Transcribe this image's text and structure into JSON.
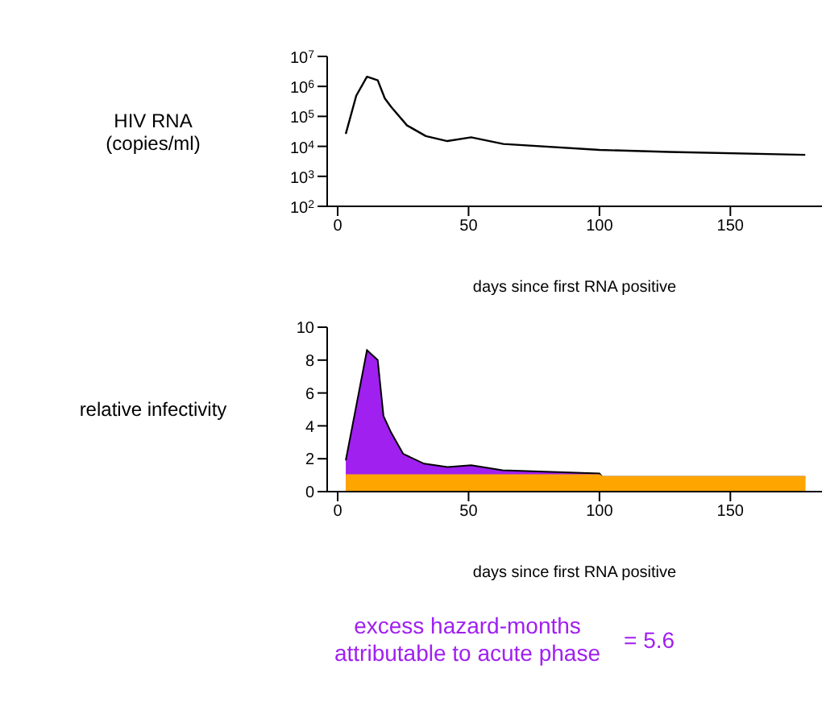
{
  "chart_data": [
    {
      "type": "line",
      "ylabel": "HIV RNA (copies/ml)",
      "xlabel": "days since first RNA positive",
      "log": "y",
      "xlim": [
        -4,
        185
      ],
      "xticks": [
        0,
        50,
        100,
        150
      ],
      "ylim": [
        100,
        10000000
      ],
      "yticks": [
        {
          "value": 100,
          "label": "10$^{2}$"
        },
        {
          "value": 1000,
          "label": "10$^{3}$"
        },
        {
          "value": 10000,
          "label": "10$^{4}$"
        },
        {
          "value": 100000,
          "label": "10$^{5}$"
        },
        {
          "value": 1000000,
          "label": "10$^{6}$"
        },
        {
          "value": 10000000,
          "label": "10$^{7}$"
        }
      ],
      "series": [
        {
          "color": "#000000",
          "x": [
            3.1,
            7.1,
            11.2,
            15.3,
            18,
            20.4,
            26.5,
            33.7,
            41.9,
            51,
            63.3,
            100,
            126.5,
            178.6
          ],
          "values": [
            26000,
            490000,
            2100000,
            1600000,
            400000,
            210000,
            50000,
            22000,
            15000,
            20000,
            12000,
            7600,
            6500,
            5200
          ]
        }
      ]
    },
    {
      "type": "area",
      "ylabel": "relative infectivity",
      "xlabel": "days since first RNA positive",
      "xlim": [
        -4,
        185
      ],
      "xticks": [
        0,
        50,
        100,
        150
      ],
      "ylim": [
        0,
        10
      ],
      "yticks": [
        0,
        2,
        4,
        6,
        8,
        10
      ],
      "series": [
        {
          "color": "#a020f0",
          "x": [
            3.1,
            11.2,
            15.3,
            17.5,
            20.4,
            25,
            33,
            42,
            51,
            63,
            100,
            101,
            178.6
          ],
          "values": [
            1.9,
            8.6,
            8.0,
            4.6,
            3.6,
            2.3,
            1.7,
            1.5,
            1.6,
            1.3,
            1.1,
            0.9,
            0.9
          ]
        },
        {
          "color": "#ffa500",
          "x": [
            3.1,
            100,
            101,
            178.6
          ],
          "values": [
            1,
            1,
            0.9,
            0.9
          ]
        }
      ],
      "annotations": [
        "excess hazard-months attributable to acute phase",
        "= 5.6"
      ]
    }
  ]
}
